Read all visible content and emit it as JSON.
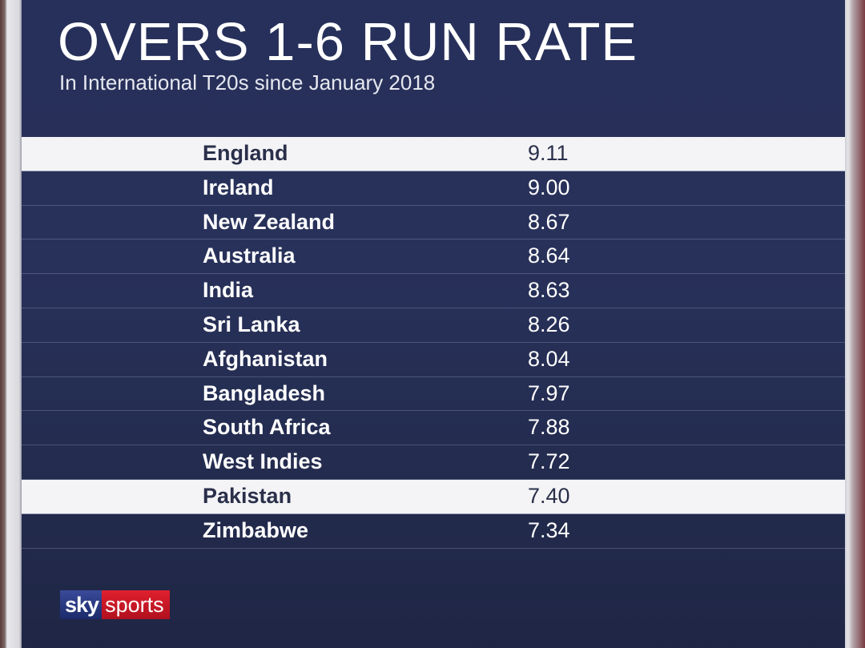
{
  "header": {
    "title": "OVERS 1-6 RUN RATE",
    "subtitle": "In International T20s since January 2018"
  },
  "logo": {
    "sky": "sky",
    "sports": "sports"
  },
  "colors": {
    "panel": "#27305a",
    "highlight_row": "#f4f4f6",
    "logo_red": "#d01828",
    "logo_blue": "#2a3a8a"
  },
  "chart_data": {
    "type": "table",
    "title": "OVERS 1-6 RUN RATE",
    "subtitle": "In International T20s since January 2018",
    "rows": [
      {
        "team": "England",
        "value": "9.11",
        "highlighted": true
      },
      {
        "team": "Ireland",
        "value": "9.00",
        "highlighted": false
      },
      {
        "team": "New Zealand",
        "value": "8.67",
        "highlighted": false
      },
      {
        "team": "Australia",
        "value": "8.64",
        "highlighted": false
      },
      {
        "team": "India",
        "value": "8.63",
        "highlighted": false
      },
      {
        "team": "Sri Lanka",
        "value": "8.26",
        "highlighted": false
      },
      {
        "team": "Afghanistan",
        "value": "8.04",
        "highlighted": false
      },
      {
        "team": "Bangladesh",
        "value": "7.97",
        "highlighted": false
      },
      {
        "team": "South Africa",
        "value": "7.88",
        "highlighted": false
      },
      {
        "team": "West Indies",
        "value": "7.72",
        "highlighted": false
      },
      {
        "team": "Pakistan",
        "value": "7.40",
        "highlighted": true
      },
      {
        "team": "Zimbabwe",
        "value": "7.34",
        "highlighted": false
      }
    ]
  }
}
